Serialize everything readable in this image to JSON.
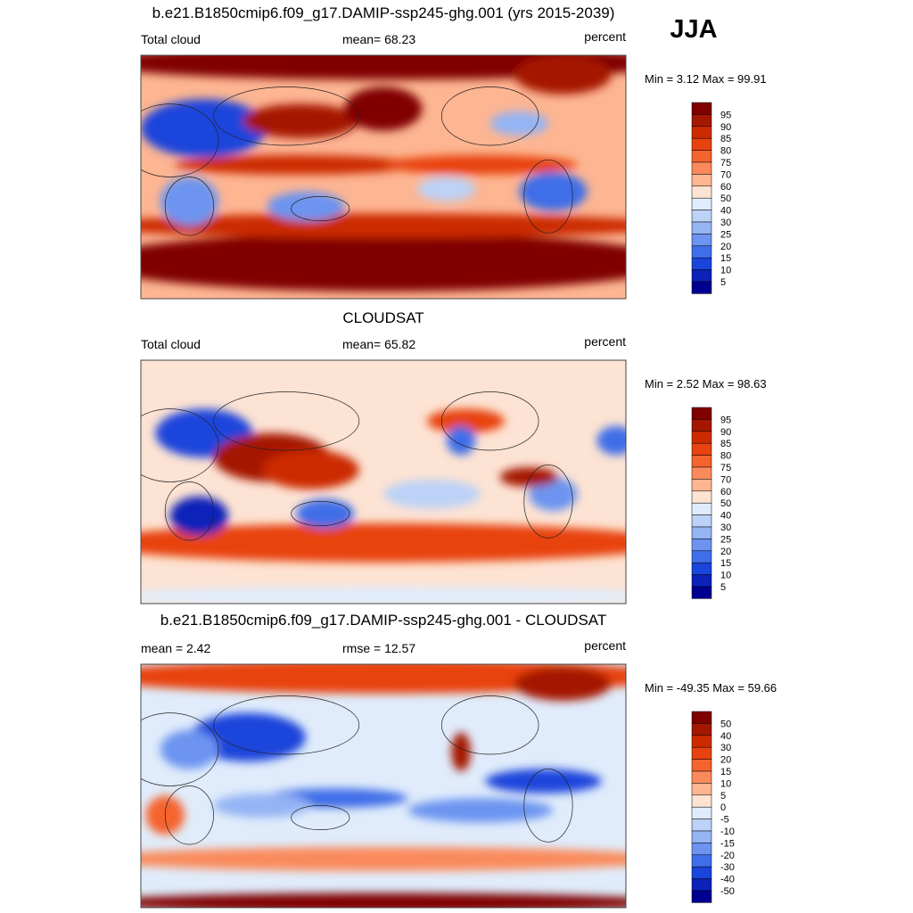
{
  "season": "JJA",
  "palette": [
    "#800000",
    "#a51800",
    "#cc2a00",
    "#e8430f",
    "#f5632e",
    "#fa8a5c",
    "#fdb592",
    "#fde3d3",
    "#e0ecfb",
    "#bcd2f7",
    "#94b4f4",
    "#6c94f0",
    "#3f6ee8",
    "#1a45dc",
    "#0a22b8",
    "#000090"
  ],
  "panels": [
    {
      "title": "b.e21.B1850cmip6.f09_g17.DAMIP-ssp245-ghg.001 (yrs 2015-2039)",
      "left": "Total cloud",
      "center": "mean=  68.23",
      "right": "percent",
      "stats": "Min =   3.12 Max =  99.91",
      "ticks": [
        95,
        90,
        85,
        80,
        75,
        70,
        60,
        50,
        40,
        30,
        25,
        20,
        15,
        10,
        5
      ]
    },
    {
      "title": "CLOUDSAT",
      "left": "Total cloud",
      "center": "mean=  65.82",
      "right": "percent",
      "stats": "Min =   2.52 Max =  98.63",
      "ticks": [
        95,
        90,
        85,
        80,
        75,
        70,
        60,
        50,
        40,
        30,
        25,
        20,
        15,
        10,
        5
      ]
    },
    {
      "title": "b.e21.B1850cmip6.f09_g17.DAMIP-ssp245-ghg.001 - CLOUDSAT",
      "left": "mean =   2.42",
      "center": "rmse =  12.57",
      "right": "percent",
      "stats": "Min = -49.35 Max =  59.66",
      "ticks": [
        50,
        40,
        30,
        20,
        15,
        10,
        5,
        0,
        -5,
        -10,
        -15,
        -20,
        -30,
        -40,
        -50
      ]
    }
  ]
}
